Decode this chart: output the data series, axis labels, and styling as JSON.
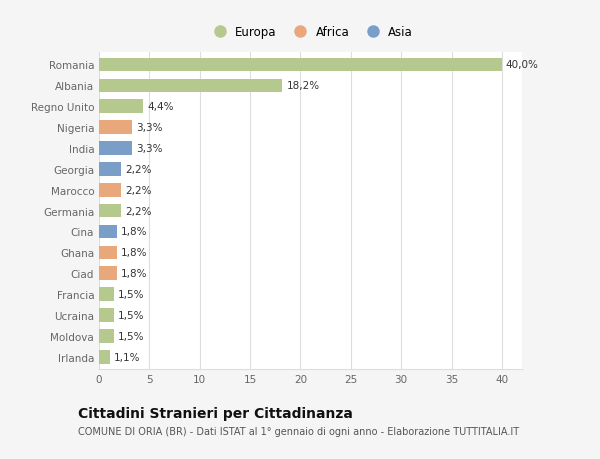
{
  "countries": [
    "Romania",
    "Albania",
    "Regno Unito",
    "Nigeria",
    "India",
    "Georgia",
    "Marocco",
    "Germania",
    "Cina",
    "Ghana",
    "Ciad",
    "Francia",
    "Ucraina",
    "Moldova",
    "Irlanda"
  ],
  "values": [
    40.0,
    18.2,
    4.4,
    3.3,
    3.3,
    2.2,
    2.2,
    2.2,
    1.8,
    1.8,
    1.8,
    1.5,
    1.5,
    1.5,
    1.1
  ],
  "continents": [
    "Europa",
    "Europa",
    "Europa",
    "Africa",
    "Asia",
    "Asia",
    "Africa",
    "Europa",
    "Asia",
    "Africa",
    "Africa",
    "Europa",
    "Europa",
    "Europa",
    "Europa"
  ],
  "labels": [
    "40,0%",
    "18,2%",
    "4,4%",
    "3,3%",
    "3,3%",
    "2,2%",
    "2,2%",
    "2,2%",
    "1,8%",
    "1,8%",
    "1,8%",
    "1,5%",
    "1,5%",
    "1,5%",
    "1,1%"
  ],
  "colors": {
    "Europa": "#b5c98e",
    "Africa": "#e8a87c",
    "Asia": "#7b9ec9"
  },
  "legend_items": [
    "Europa",
    "Africa",
    "Asia"
  ],
  "legend_colors": [
    "#b5c98e",
    "#e8a87c",
    "#7b9ec9"
  ],
  "xlim": [
    0,
    42
  ],
  "xticks": [
    0,
    5,
    10,
    15,
    20,
    25,
    30,
    35,
    40
  ],
  "title": "Cittadini Stranieri per Cittadinanza",
  "subtitle": "COMUNE DI ORIA (BR) - Dati ISTAT al 1° gennaio di ogni anno - Elaborazione TUTTITALIA.IT",
  "background_color": "#f5f5f5",
  "plot_bg_color": "#ffffff",
  "grid_color": "#dddddd",
  "bar_height": 0.65,
  "label_fontsize": 7.5,
  "ytick_fontsize": 7.5,
  "xtick_fontsize": 7.5,
  "title_fontsize": 10,
  "subtitle_fontsize": 7,
  "legend_fontsize": 8.5
}
